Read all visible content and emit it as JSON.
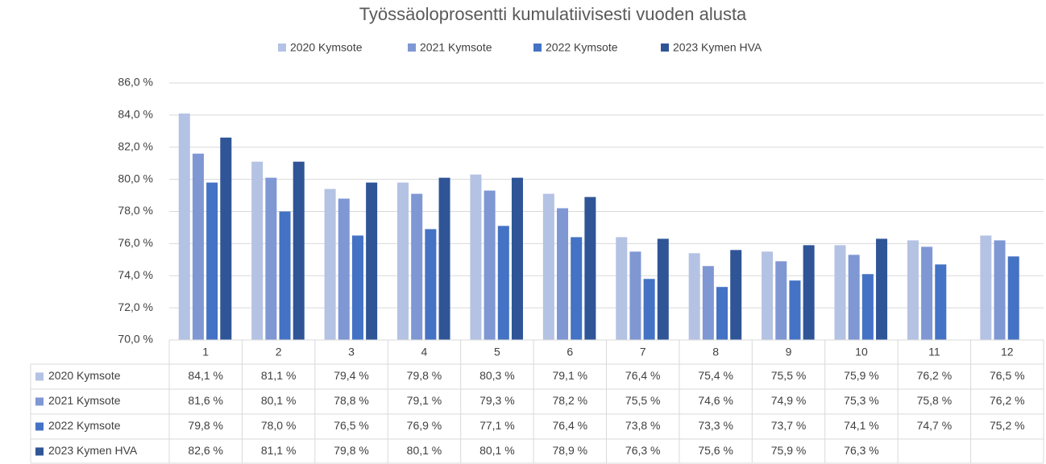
{
  "chart_data": {
    "type": "bar",
    "title": "Työssäoloprosentti kumulatiivisesti vuoden alusta",
    "categories": [
      "1",
      "2",
      "3",
      "4",
      "5",
      "6",
      "7",
      "8",
      "9",
      "10",
      "11",
      "12"
    ],
    "series": [
      {
        "name": "2020 Kymsote",
        "color": "#b4c2e3",
        "values": [
          84.1,
          81.1,
          79.4,
          79.8,
          80.3,
          79.1,
          76.4,
          75.4,
          75.5,
          75.9,
          76.2,
          76.5
        ],
        "value_labels": [
          "84,1 %",
          "81,1 %",
          "79,4 %",
          "79,8 %",
          "80,3 %",
          "79,1 %",
          "76,4 %",
          "75,4 %",
          "75,5 %",
          "75,9 %",
          "76,2 %",
          "76,5 %"
        ]
      },
      {
        "name": "2021 Kymsote",
        "color": "#7f97d3",
        "values": [
          81.6,
          80.1,
          78.8,
          79.1,
          79.3,
          78.2,
          75.5,
          74.6,
          74.9,
          75.3,
          75.8,
          76.2
        ],
        "value_labels": [
          "81,6 %",
          "80,1 %",
          "78,8 %",
          "79,1 %",
          "79,3 %",
          "78,2 %",
          "75,5 %",
          "74,6 %",
          "74,9 %",
          "75,3 %",
          "75,8 %",
          "76,2 %"
        ]
      },
      {
        "name": "2022 Kymsote",
        "color": "#4472c4",
        "values": [
          79.8,
          78.0,
          76.5,
          76.9,
          77.1,
          76.4,
          73.8,
          73.3,
          73.7,
          74.1,
          74.7,
          75.2
        ],
        "value_labels": [
          "79,8 %",
          "78,0 %",
          "76,5 %",
          "76,9 %",
          "77,1 %",
          "76,4 %",
          "73,8 %",
          "73,3 %",
          "73,7 %",
          "74,1 %",
          "74,7 %",
          "75,2 %"
        ]
      },
      {
        "name": "2023 Kymen HVA",
        "color": "#2f5597",
        "values": [
          82.6,
          81.1,
          79.8,
          80.1,
          80.1,
          78.9,
          76.3,
          75.6,
          75.9,
          76.3,
          null,
          null
        ],
        "value_labels": [
          "82,6 %",
          "81,1 %",
          "79,8 %",
          "80,1 %",
          "80,1 %",
          "78,9 %",
          "76,3 %",
          "75,6 %",
          "75,9 %",
          "76,3 %",
          null,
          null
        ]
      }
    ],
    "ylim": [
      70,
      86
    ],
    "yticks": [
      {
        "value": 70,
        "label": "70,0 %"
      },
      {
        "value": 72,
        "label": "72,0 %"
      },
      {
        "value": 74,
        "label": "74,0 %"
      },
      {
        "value": 76,
        "label": "76,0 %"
      },
      {
        "value": 78,
        "label": "78,0 %"
      },
      {
        "value": 80,
        "label": "80,0 %"
      },
      {
        "value": 82,
        "label": "82,0 %"
      },
      {
        "value": 84,
        "label": "84,0 %"
      },
      {
        "value": 86,
        "label": "86,0 %"
      }
    ],
    "grid": true,
    "legend": "top"
  }
}
